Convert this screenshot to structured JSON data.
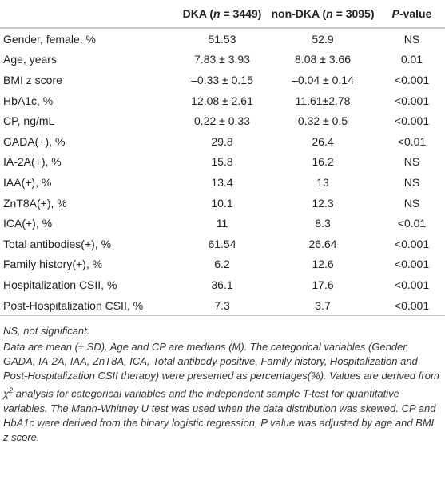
{
  "table": {
    "header": [
      [
        ""
      ],
      [
        "DKA (",
        "n",
        " = 3449)"
      ],
      [
        "non-DKA (",
        "n",
        " = 3095)"
      ],
      [
        "",
        "P",
        "-value"
      ]
    ],
    "rows": [
      [
        "Gender, female, %",
        "51.53",
        "52.9",
        "NS"
      ],
      [
        "Age, years",
        "7.83 ± 3.93",
        "8.08 ± 3.66",
        "0.01"
      ],
      [
        "BMI z score",
        "–0.33 ± 0.15",
        "–0.04 ± 0.14",
        "<0.001"
      ],
      [
        "HbA1c, %",
        "12.08 ± 2.61",
        "11.61±2.78",
        "<0.001"
      ],
      [
        "CP, ng/mL",
        "0.22 ± 0.33",
        "0.32 ± 0.5",
        "<0.001"
      ],
      [
        "GADA(+), %",
        "29.8",
        "26.4",
        "<0.01"
      ],
      [
        "IA-2A(+), %",
        "15.8",
        "16.2",
        "NS"
      ],
      [
        "IAA(+), %",
        "13.4",
        "13",
        "NS"
      ],
      [
        "ZnT8A(+), %",
        "10.1",
        "12.3",
        "NS"
      ],
      [
        "ICA(+), %",
        "11",
        "8.3",
        "<0.01"
      ],
      [
        "Total antibodies(+), %",
        "61.54",
        "26.64",
        "<0.001"
      ],
      [
        "Family history(+), %",
        "6.2",
        "12.6",
        "<0.001"
      ],
      [
        "Hospitalization CSII, %",
        "36.1",
        "17.6",
        "<0.001"
      ],
      [
        "Post-Hospitalization CSII, %",
        "7.3",
        "3.7",
        "<0.001"
      ]
    ]
  },
  "notes": [
    [
      "NS, not significant."
    ],
    [
      "Data are mean (± SD). Age and CP are medians (M). The categorical variables (Gender, GADA, IA-2A, IAA, ZnT8A, ICA, Total antibody positive, Family history, Hospitalization and Post-Hospitalization CSII therapy) were presented as percentages(%). Values are derived from ",
      "χ",
      "2",
      " analysis for categorical variables and the independent sample T-test for quantitative variables. The Mann-Whitney U test was used when the data distribution was skewed. CP and HbA1c were derived from the binary logistic regression, P value was adjusted by age and BMI z score."
    ]
  ]
}
